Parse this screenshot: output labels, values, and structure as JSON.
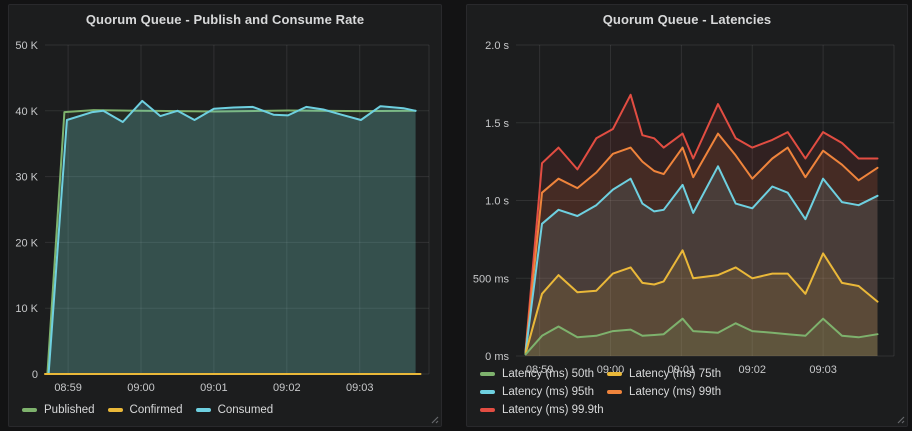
{
  "page": {
    "background": "#131314",
    "panel_background": "#1c1d1e"
  },
  "panels": [
    {
      "title": "Quorum Queue - Publish and Consume Rate"
    },
    {
      "title": "Quorum Queue - Latencies"
    }
  ],
  "chart_data": [
    {
      "type": "line",
      "title": "Quorum Queue - Publish and Consume Rate",
      "xlabel": "",
      "ylabel": "",
      "ylim": [
        0,
        50000
      ],
      "y_ticks": [
        {
          "v": 0,
          "label": "0"
        },
        {
          "v": 10000,
          "label": "10 K"
        },
        {
          "v": 20000,
          "label": "20 K"
        },
        {
          "v": 30000,
          "label": "30 K"
        },
        {
          "v": 40000,
          "label": "40 K"
        },
        {
          "v": 50000,
          "label": "50 K"
        }
      ],
      "x_unit": "seconds from chart start (chart spans ~08:58:41 to ~09:03:57)",
      "x_range": [
        0,
        316
      ],
      "x_ticks": [
        {
          "t": 19,
          "label": "08:59"
        },
        {
          "t": 79,
          "label": "09:00"
        },
        {
          "t": 139,
          "label": "09:01"
        },
        {
          "t": 199,
          "label": "09:02"
        },
        {
          "t": 259,
          "label": "09:03"
        }
      ],
      "grid": true,
      "legend_position": "bottom-left",
      "paint_order": [
        0,
        2,
        1
      ],
      "series": [
        {
          "name": "Published",
          "color": "#7EB26D",
          "fill_opacity": 0.1,
          "line_width": 2,
          "points": [
            [
              2,
              0
            ],
            [
              16,
              39800
            ],
            [
              40,
              40100
            ],
            [
              80,
              40000
            ],
            [
              140,
              39900
            ],
            [
              200,
              40050
            ],
            [
              260,
              39950
            ],
            [
              305,
              40000
            ]
          ]
        },
        {
          "name": "Confirmed",
          "color": "#EAB839",
          "fill_opacity": 0.1,
          "line_width": 2,
          "points": [
            [
              0,
              0
            ],
            [
              309,
              0
            ]
          ]
        },
        {
          "name": "Consumed",
          "color": "#6ED0E0",
          "fill_opacity": 0.22,
          "line_width": 2,
          "points": [
            [
              3,
              0
            ],
            [
              18,
              38600
            ],
            [
              39,
              39800
            ],
            [
              48,
              40000
            ],
            [
              64,
              38300
            ],
            [
              80,
              41500
            ],
            [
              95,
              39200
            ],
            [
              109,
              40000
            ],
            [
              123,
              38600
            ],
            [
              139,
              40300
            ],
            [
              155,
              40500
            ],
            [
              171,
              40600
            ],
            [
              188,
              39400
            ],
            [
              200,
              39300
            ],
            [
              215,
              40600
            ],
            [
              229,
              40200
            ],
            [
              244,
              39400
            ],
            [
              260,
              38600
            ],
            [
              276,
              40700
            ],
            [
              295,
              40400
            ],
            [
              305,
              40000
            ]
          ]
        }
      ]
    },
    {
      "type": "line",
      "title": "Quorum Queue - Latencies",
      "xlabel": "",
      "ylabel": "",
      "ylim": [
        0,
        2000
      ],
      "y_unit": "ms",
      "y_ticks": [
        {
          "v": 0,
          "label": "0 ms"
        },
        {
          "v": 500,
          "label": "500 ms"
        },
        {
          "v": 1000,
          "label": "1.0 s"
        },
        {
          "v": 1500,
          "label": "1.5 s"
        },
        {
          "v": 2000,
          "label": "2.0 s"
        }
      ],
      "x_unit": "seconds from chart start (chart spans ~08:58:47 to ~09:04:05)",
      "x_range": [
        0,
        320
      ],
      "x_ticks": [
        {
          "t": 20,
          "label": "08:59"
        },
        {
          "t": 80,
          "label": "09:00"
        },
        {
          "t": 140,
          "label": "09:01"
        },
        {
          "t": 200,
          "label": "09:02"
        },
        {
          "t": 260,
          "label": "09:03"
        }
      ],
      "grid": true,
      "legend_position": "bottom-left",
      "paint_order": [
        4,
        3,
        2,
        1,
        0
      ],
      "series": [
        {
          "name": "Latency (ms) 50th",
          "color": "#7EB26D",
          "fill_opacity": 0.11,
          "line_width": 2,
          "points": [
            [
              8,
              10
            ],
            [
              22,
              130
            ],
            [
              36,
              190
            ],
            [
              52,
              120
            ],
            [
              68,
              130
            ],
            [
              82,
              160
            ],
            [
              97,
              170
            ],
            [
              107,
              130
            ],
            [
              117,
              135
            ],
            [
              125,
              140
            ],
            [
              141,
              240
            ],
            [
              150,
              160
            ],
            [
              171,
              150
            ],
            [
              186,
              210
            ],
            [
              200,
              160
            ],
            [
              217,
              150
            ],
            [
              230,
              140
            ],
            [
              245,
              130
            ],
            [
              260,
              240
            ],
            [
              276,
              130
            ],
            [
              290,
              120
            ],
            [
              306,
              140
            ]
          ]
        },
        {
          "name": "Latency (ms) 75th",
          "color": "#EAB839",
          "fill_opacity": 0.11,
          "line_width": 2,
          "points": [
            [
              8,
              15
            ],
            [
              22,
              400
            ],
            [
              36,
              520
            ],
            [
              52,
              410
            ],
            [
              68,
              420
            ],
            [
              82,
              530
            ],
            [
              97,
              570
            ],
            [
              107,
              470
            ],
            [
              117,
              460
            ],
            [
              125,
              480
            ],
            [
              141,
              680
            ],
            [
              150,
              500
            ],
            [
              171,
              520
            ],
            [
              186,
              570
            ],
            [
              200,
              500
            ],
            [
              217,
              530
            ],
            [
              230,
              530
            ],
            [
              245,
              400
            ],
            [
              260,
              660
            ],
            [
              276,
              470
            ],
            [
              290,
              450
            ],
            [
              306,
              350
            ]
          ]
        },
        {
          "name": "Latency (ms) 95th",
          "color": "#6ED0E0",
          "fill_opacity": 0.11,
          "line_width": 2,
          "points": [
            [
              8,
              20
            ],
            [
              22,
              850
            ],
            [
              36,
              940
            ],
            [
              52,
              900
            ],
            [
              68,
              970
            ],
            [
              82,
              1070
            ],
            [
              97,
              1140
            ],
            [
              107,
              980
            ],
            [
              117,
              930
            ],
            [
              125,
              940
            ],
            [
              141,
              1100
            ],
            [
              150,
              920
            ],
            [
              171,
              1220
            ],
            [
              186,
              980
            ],
            [
              200,
              950
            ],
            [
              217,
              1090
            ],
            [
              230,
              1050
            ],
            [
              245,
              880
            ],
            [
              260,
              1140
            ],
            [
              276,
              990
            ],
            [
              290,
              970
            ],
            [
              306,
              1030
            ]
          ]
        },
        {
          "name": "Latency (ms) 99th",
          "color": "#EF843C",
          "fill_opacity": 0.11,
          "line_width": 2,
          "points": [
            [
              8,
              25
            ],
            [
              22,
              1050
            ],
            [
              36,
              1140
            ],
            [
              52,
              1080
            ],
            [
              68,
              1180
            ],
            [
              82,
              1300
            ],
            [
              97,
              1340
            ],
            [
              107,
              1250
            ],
            [
              117,
              1190
            ],
            [
              125,
              1170
            ],
            [
              141,
              1340
            ],
            [
              150,
              1150
            ],
            [
              171,
              1430
            ],
            [
              186,
              1290
            ],
            [
              200,
              1140
            ],
            [
              217,
              1270
            ],
            [
              230,
              1340
            ],
            [
              245,
              1150
            ],
            [
              260,
              1320
            ],
            [
              276,
              1230
            ],
            [
              290,
              1130
            ],
            [
              306,
              1210
            ]
          ]
        },
        {
          "name": "Latency (ms) 99.9th",
          "color": "#E24D42",
          "fill_opacity": 0.11,
          "line_width": 2,
          "points": [
            [
              8,
              30
            ],
            [
              22,
              1240
            ],
            [
              36,
              1340
            ],
            [
              52,
              1200
            ],
            [
              68,
              1400
            ],
            [
              82,
              1460
            ],
            [
              97,
              1680
            ],
            [
              107,
              1420
            ],
            [
              117,
              1400
            ],
            [
              125,
              1340
            ],
            [
              141,
              1430
            ],
            [
              150,
              1270
            ],
            [
              171,
              1620
            ],
            [
              186,
              1400
            ],
            [
              200,
              1340
            ],
            [
              217,
              1390
            ],
            [
              230,
              1440
            ],
            [
              245,
              1270
            ],
            [
              260,
              1440
            ],
            [
              276,
              1370
            ],
            [
              290,
              1270
            ],
            [
              306,
              1270
            ]
          ]
        }
      ]
    }
  ]
}
